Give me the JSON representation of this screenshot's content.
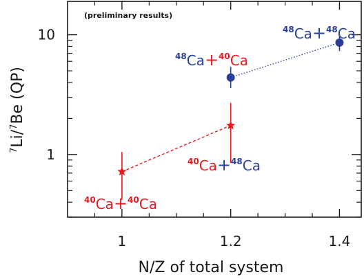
{
  "chart_data": {
    "type": "scatter",
    "title": "",
    "xlabel": "N/Z of total system",
    "ylabel_parts": [
      {
        "text": "7",
        "sup": true
      },
      {
        "text": "Li/",
        "sup": false
      },
      {
        "text": "7",
        "sup": true
      },
      {
        "text": "Be (QP)",
        "sup": false
      }
    ],
    "note": "(preliminary results)",
    "xlim": [
      0.9,
      1.44
    ],
    "ylim": [
      0.3,
      19
    ],
    "yscale": "log",
    "x_ticks": [
      {
        "value": 1.0,
        "label": "1"
      },
      {
        "value": 1.2,
        "label": "1.2"
      },
      {
        "value": 1.4,
        "label": "1.4"
      }
    ],
    "y_ticks": [
      {
        "value": 1,
        "label": "1"
      },
      {
        "value": 10,
        "label": "10"
      }
    ],
    "colors": {
      "red": "#e8191f",
      "blue": "#2b3f98"
    },
    "series": [
      {
        "marker": "star",
        "color": "#e8191f",
        "line": "dashed",
        "points": [
          {
            "x": 1.0,
            "y": 0.72,
            "yerr_low": 0.42,
            "yerr_high": 1.05
          },
          {
            "x": 1.2,
            "y": 1.75,
            "yerr_low": 0.85,
            "yerr_high": 2.7
          }
        ]
      },
      {
        "marker": "circle",
        "color": "#2b3f98",
        "line": "dotted",
        "points": [
          {
            "x": 1.2,
            "y": 4.4,
            "yerr_low": 3.6,
            "yerr_high": 5.4
          },
          {
            "x": 1.4,
            "y": 8.6,
            "yerr_low": 7.3,
            "yerr_high": 10.2
          }
        ]
      }
    ],
    "annotations": [
      {
        "name": "annotation-ca40-ca40",
        "parts": [
          {
            "text": "40",
            "sup": true,
            "color": "#e8191f"
          },
          {
            "text": "Ca",
            "color": "#e8191f"
          },
          {
            "text": "+",
            "color": "#e8191f"
          },
          {
            "text": "40",
            "sup": true,
            "color": "#e8191f"
          },
          {
            "text": "Ca",
            "color": "#e8191f"
          }
        ]
      },
      {
        "name": "annotation-ca40-ca48",
        "parts": [
          {
            "text": "40",
            "sup": true,
            "color": "#e8191f"
          },
          {
            "text": "Ca",
            "color": "#e8191f"
          },
          {
            "text": "+",
            "color": "#2b3f98"
          },
          {
            "text": "48",
            "sup": true,
            "color": "#2b3f98"
          },
          {
            "text": "Ca",
            "color": "#2b3f98"
          }
        ]
      },
      {
        "name": "annotation-ca48-ca40",
        "parts": [
          {
            "text": "48",
            "sup": true,
            "color": "#2b3f98"
          },
          {
            "text": "Ca",
            "color": "#2b3f98"
          },
          {
            "text": "+",
            "color": "#e8191f"
          },
          {
            "text": "40",
            "sup": true,
            "color": "#e8191f"
          },
          {
            "text": "Ca",
            "color": "#e8191f"
          }
        ]
      },
      {
        "name": "annotation-ca48-ca48",
        "parts": [
          {
            "text": "48",
            "sup": true,
            "color": "#2b3f98"
          },
          {
            "text": "Ca",
            "color": "#2b3f98"
          },
          {
            "text": "+",
            "color": "#2b3f98"
          },
          {
            "text": "48",
            "sup": true,
            "color": "#2b3f98"
          },
          {
            "text": "Ca",
            "color": "#2b3f98"
          }
        ]
      }
    ]
  }
}
